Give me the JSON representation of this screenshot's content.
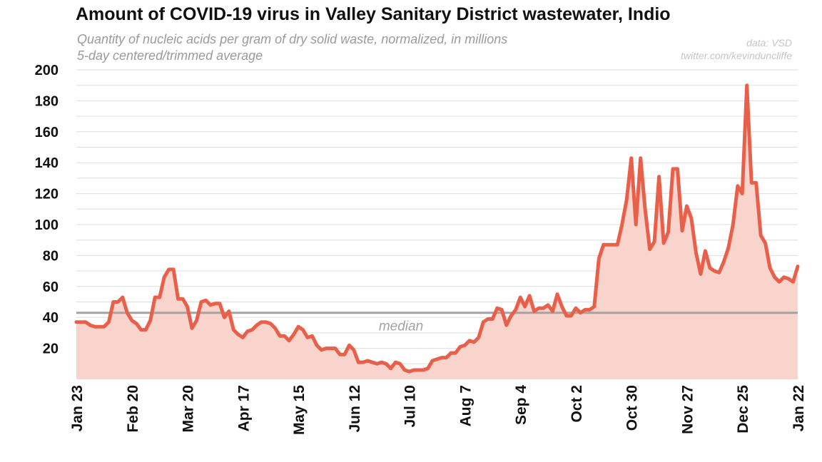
{
  "chart_data": {
    "type": "area",
    "title": "Amount of COVID-19 virus in Valley Sanitary District wastewater, Indio",
    "subtitle": [
      "Quantity of nucleic acids per gram of dry solid waste, normalized, in millions",
      "5-day centered/trimmed average"
    ],
    "source": "data: VSD",
    "credit": "twitter.com/kevinduncliffe",
    "ylim": [
      0,
      200
    ],
    "yticks": [
      20,
      40,
      60,
      80,
      100,
      120,
      140,
      160,
      180,
      200
    ],
    "grid": true,
    "xticks": [
      "Jan 23",
      "Feb 20",
      "Mar 20",
      "Apr 17",
      "May 15",
      "Jun 12",
      "Jul 10",
      "Aug 7",
      "Sep 4",
      "Oct 2",
      "Oct 30",
      "Nov 27",
      "Dec 25",
      "Jan 22"
    ],
    "median": {
      "label": "median",
      "value": 43
    },
    "series": [
      {
        "values": [
          37,
          37,
          37,
          35,
          34,
          34,
          34,
          37,
          50,
          50,
          53,
          43,
          38,
          36,
          32,
          32,
          38,
          53,
          53,
          66,
          71,
          71,
          52,
          52,
          47,
          33,
          38,
          50,
          51,
          48,
          49,
          49,
          40,
          44,
          32,
          29,
          27,
          31,
          32,
          35,
          37,
          37,
          36,
          33,
          28,
          28,
          25,
          29,
          34,
          32,
          27,
          28,
          22,
          19,
          20,
          20,
          20,
          16,
          16,
          22,
          19,
          11,
          11,
          12,
          11,
          10,
          11,
          10,
          7,
          11,
          10,
          6,
          5,
          6,
          6,
          6,
          7,
          12,
          13,
          14,
          14,
          17,
          17,
          21,
          22,
          25,
          24,
          27,
          37,
          39,
          39,
          46,
          45,
          35,
          41,
          45,
          53,
          47,
          54,
          44,
          46,
          46,
          48,
          44,
          55,
          47,
          41,
          41,
          46,
          43,
          45,
          45,
          47,
          78,
          87,
          87,
          87,
          87,
          100,
          116,
          143,
          100,
          143,
          110,
          84,
          89,
          131,
          88,
          95,
          136,
          136,
          96,
          112,
          104,
          82,
          68,
          83,
          72,
          70,
          69,
          76,
          85,
          100,
          125,
          120,
          190,
          127,
          127,
          93,
          88,
          72,
          66,
          63,
          66,
          65,
          63,
          73
        ]
      }
    ],
    "colors": {
      "line": "#e8604a",
      "fill": "#f9d4cc",
      "median": "#a3a3a3",
      "grid": "#dddddd",
      "axis_text": "#111111"
    }
  }
}
